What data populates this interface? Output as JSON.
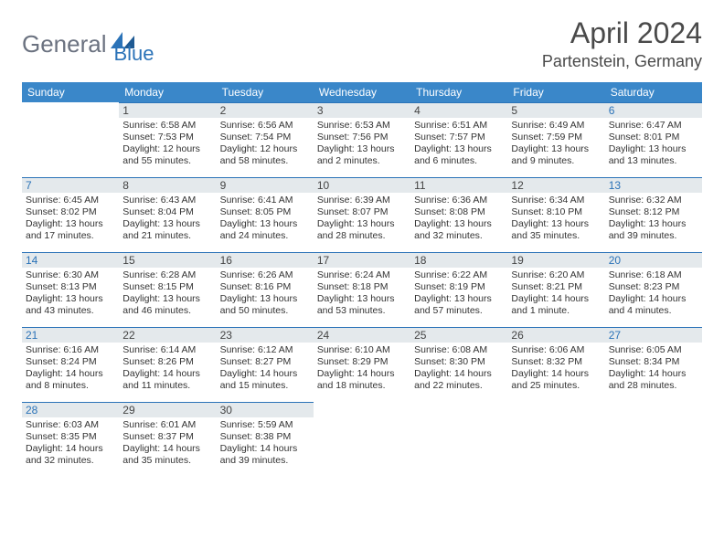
{
  "logo": {
    "part1": "General",
    "part2": "Blue"
  },
  "title": "April 2024",
  "location": "Partenstein, Germany",
  "header_bg": "#3a87c9",
  "divider_color": "#2b73b8",
  "daynum_bg": "#e4e9ec",
  "days_of_week": [
    "Sunday",
    "Monday",
    "Tuesday",
    "Wednesday",
    "Thursday",
    "Friday",
    "Saturday"
  ],
  "weeks": [
    [
      null,
      {
        "n": "1",
        "sr": "6:58 AM",
        "ss": "7:53 PM",
        "d1": "12 hours",
        "d2": "and 55 minutes."
      },
      {
        "n": "2",
        "sr": "6:56 AM",
        "ss": "7:54 PM",
        "d1": "12 hours",
        "d2": "and 58 minutes."
      },
      {
        "n": "3",
        "sr": "6:53 AM",
        "ss": "7:56 PM",
        "d1": "13 hours",
        "d2": "and 2 minutes."
      },
      {
        "n": "4",
        "sr": "6:51 AM",
        "ss": "7:57 PM",
        "d1": "13 hours",
        "d2": "and 6 minutes."
      },
      {
        "n": "5",
        "sr": "6:49 AM",
        "ss": "7:59 PM",
        "d1": "13 hours",
        "d2": "and 9 minutes."
      },
      {
        "n": "6",
        "sr": "6:47 AM",
        "ss": "8:01 PM",
        "d1": "13 hours",
        "d2": "and 13 minutes."
      }
    ],
    [
      {
        "n": "7",
        "sr": "6:45 AM",
        "ss": "8:02 PM",
        "d1": "13 hours",
        "d2": "and 17 minutes."
      },
      {
        "n": "8",
        "sr": "6:43 AM",
        "ss": "8:04 PM",
        "d1": "13 hours",
        "d2": "and 21 minutes."
      },
      {
        "n": "9",
        "sr": "6:41 AM",
        "ss": "8:05 PM",
        "d1": "13 hours",
        "d2": "and 24 minutes."
      },
      {
        "n": "10",
        "sr": "6:39 AM",
        "ss": "8:07 PM",
        "d1": "13 hours",
        "d2": "and 28 minutes."
      },
      {
        "n": "11",
        "sr": "6:36 AM",
        "ss": "8:08 PM",
        "d1": "13 hours",
        "d2": "and 32 minutes."
      },
      {
        "n": "12",
        "sr": "6:34 AM",
        "ss": "8:10 PM",
        "d1": "13 hours",
        "d2": "and 35 minutes."
      },
      {
        "n": "13",
        "sr": "6:32 AM",
        "ss": "8:12 PM",
        "d1": "13 hours",
        "d2": "and 39 minutes."
      }
    ],
    [
      {
        "n": "14",
        "sr": "6:30 AM",
        "ss": "8:13 PM",
        "d1": "13 hours",
        "d2": "and 43 minutes."
      },
      {
        "n": "15",
        "sr": "6:28 AM",
        "ss": "8:15 PM",
        "d1": "13 hours",
        "d2": "and 46 minutes."
      },
      {
        "n": "16",
        "sr": "6:26 AM",
        "ss": "8:16 PM",
        "d1": "13 hours",
        "d2": "and 50 minutes."
      },
      {
        "n": "17",
        "sr": "6:24 AM",
        "ss": "8:18 PM",
        "d1": "13 hours",
        "d2": "and 53 minutes."
      },
      {
        "n": "18",
        "sr": "6:22 AM",
        "ss": "8:19 PM",
        "d1": "13 hours",
        "d2": "and 57 minutes."
      },
      {
        "n": "19",
        "sr": "6:20 AM",
        "ss": "8:21 PM",
        "d1": "14 hours",
        "d2": "and 1 minute."
      },
      {
        "n": "20",
        "sr": "6:18 AM",
        "ss": "8:23 PM",
        "d1": "14 hours",
        "d2": "and 4 minutes."
      }
    ],
    [
      {
        "n": "21",
        "sr": "6:16 AM",
        "ss": "8:24 PM",
        "d1": "14 hours",
        "d2": "and 8 minutes."
      },
      {
        "n": "22",
        "sr": "6:14 AM",
        "ss": "8:26 PM",
        "d1": "14 hours",
        "d2": "and 11 minutes."
      },
      {
        "n": "23",
        "sr": "6:12 AM",
        "ss": "8:27 PM",
        "d1": "14 hours",
        "d2": "and 15 minutes."
      },
      {
        "n": "24",
        "sr": "6:10 AM",
        "ss": "8:29 PM",
        "d1": "14 hours",
        "d2": "and 18 minutes."
      },
      {
        "n": "25",
        "sr": "6:08 AM",
        "ss": "8:30 PM",
        "d1": "14 hours",
        "d2": "and 22 minutes."
      },
      {
        "n": "26",
        "sr": "6:06 AM",
        "ss": "8:32 PM",
        "d1": "14 hours",
        "d2": "and 25 minutes."
      },
      {
        "n": "27",
        "sr": "6:05 AM",
        "ss": "8:34 PM",
        "d1": "14 hours",
        "d2": "and 28 minutes."
      }
    ],
    [
      {
        "n": "28",
        "sr": "6:03 AM",
        "ss": "8:35 PM",
        "d1": "14 hours",
        "d2": "and 32 minutes."
      },
      {
        "n": "29",
        "sr": "6:01 AM",
        "ss": "8:37 PM",
        "d1": "14 hours",
        "d2": "and 35 minutes."
      },
      {
        "n": "30",
        "sr": "5:59 AM",
        "ss": "8:38 PM",
        "d1": "14 hours",
        "d2": "and 39 minutes."
      },
      null,
      null,
      null,
      null
    ]
  ],
  "labels": {
    "sunrise": "Sunrise:",
    "sunset": "Sunset:",
    "daylight": "Daylight:"
  }
}
